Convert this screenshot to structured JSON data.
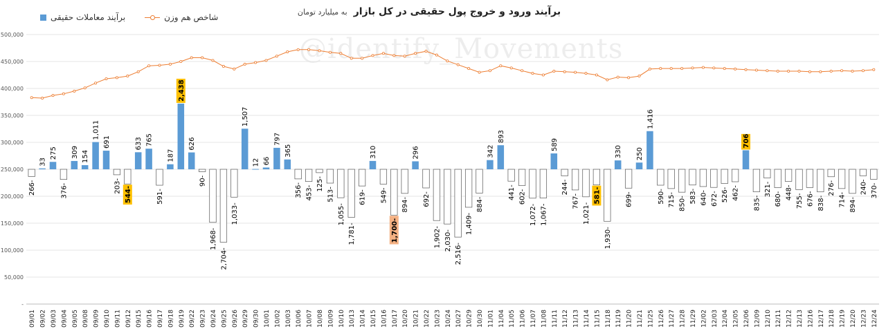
{
  "header": {
    "title": "برآیند ورود و خروج پول حقیقی در کل بازار",
    "subtitle": "به میلیارد تومان"
  },
  "legend": {
    "bars_label": "برآیند معاملات حقیقی",
    "line_label": "شاخص هم وزن"
  },
  "watermark": "@identify_Movements",
  "colors": {
    "bar_positive": "#5b9bd5",
    "bar_negative_fill": "#ffffff",
    "bar_negative_stroke": "#555555",
    "line": "#ed7d31",
    "highlight_yellow": "#ffc000",
    "highlight_orange": "#f4b183"
  },
  "chart_data": {
    "type": "bar",
    "ylabel": "",
    "xlabel": "",
    "ylim": [
      0,
      500000
    ],
    "yticks": [
      "-",
      "50,000",
      "100,000",
      "150,000",
      "200,000",
      "250,000",
      "300,000",
      "350,000",
      "400,000",
      "450,000",
      "500,000"
    ],
    "categories": [
      "09/01",
      "09/02",
      "09/03",
      "09/04",
      "09/05",
      "09/08",
      "09/09",
      "09/10",
      "09/11",
      "09/12",
      "09/15",
      "09/16",
      "09/17",
      "09/18",
      "09/19",
      "09/22",
      "09/23",
      "09/24",
      "09/25",
      "09/26",
      "09/29",
      "09/30",
      "10/01",
      "10/02",
      "10/03",
      "10/06",
      "10/07",
      "10/08",
      "10/09",
      "10/10",
      "10/13",
      "10/14",
      "10/15",
      "10/16",
      "10/17",
      "10/20",
      "10/21",
      "10/22",
      "10/23",
      "10/24",
      "10/27",
      "10/29",
      "10/30",
      "11/01",
      "11/04",
      "11/05",
      "11/06",
      "11/07",
      "11/08",
      "11/11",
      "11/12",
      "11/13",
      "11/14",
      "11/15",
      "11/18",
      "11/19",
      "11/20",
      "11/21",
      "11/25",
      "11/26",
      "11/27",
      "11/28",
      "11/29",
      "12/02",
      "12/03",
      "12/04",
      "12/05",
      "12/06",
      "12/09",
      "12/10",
      "12/11",
      "12/12",
      "12/13",
      "12/16",
      "12/17",
      "12/18",
      "12/19",
      "12/20",
      "12/23",
      "12/24"
    ],
    "series": [
      {
        "name": "برآیند معاملات حقیقی",
        "kind": "bar",
        "values": [
          -266,
          33,
          275,
          -376,
          309,
          154,
          1011,
          691,
          -203,
          -544,
          633,
          765,
          -591,
          187,
          2438,
          626,
          -90,
          -1968,
          -2704,
          -1033,
          1507,
          12,
          66,
          797,
          365,
          -356,
          -453,
          -125,
          -513,
          -1055,
          -1781,
          -619,
          310,
          -549,
          -1700,
          -894,
          296,
          -692,
          -1902,
          -2030,
          -2516,
          -1409,
          -884,
          342,
          893,
          -441,
          -602,
          -1072,
          -1067,
          589,
          -244,
          -767,
          -1021,
          -581,
          -1930,
          330,
          -699,
          250,
          1416,
          -590,
          -715,
          -850,
          -583,
          -640,
          -672,
          -526,
          -462,
          706,
          -835,
          -321,
          -680,
          -448,
          -755,
          -676,
          -838,
          -276,
          -714,
          -894,
          -240,
          -370
        ],
        "labels": [
          "266-",
          "33",
          "275",
          "376-",
          "309",
          "154",
          "1,011",
          "691",
          "203-",
          "544-",
          "633",
          "765",
          "591-",
          "187",
          "2,438",
          "626",
          "90-",
          "1,968-",
          "2,704-",
          "1,033-",
          "1,507",
          "12",
          "66",
          "797",
          "365",
          "356-",
          "453-",
          "125-",
          "513-",
          "1,055-",
          "1,781-",
          "619-",
          "310",
          "549-",
          "1,700-",
          "894-",
          "296",
          "692-",
          "1,902-",
          "2,030-",
          "2,516-",
          "1,409-",
          "884-",
          "342",
          "893",
          "441-",
          "602-",
          "1,072-",
          "1,067-",
          "589",
          "244-",
          "767-",
          "1,021-",
          "581-",
          "1,930-",
          "330",
          "699-",
          "250",
          "1,416",
          "590-",
          "715-",
          "850-",
          "583-",
          "640-",
          "672-",
          "526-",
          "462-",
          "706",
          "835-",
          "321-",
          "680-",
          "448-",
          "755-",
          "676-",
          "838-",
          "276-",
          "714-",
          "894-",
          "240-",
          "370-"
        ],
        "highlight_yellow": [
          9,
          14,
          53,
          67
        ],
        "highlight_orange": [
          34
        ]
      },
      {
        "name": "شاخص هم وزن",
        "kind": "line",
        "values": [
          383000,
          382000,
          387000,
          390000,
          395000,
          401000,
          410000,
          418000,
          420000,
          423000,
          431000,
          442000,
          443000,
          445000,
          450000,
          457000,
          457000,
          452000,
          441000,
          436000,
          445000,
          448000,
          452000,
          460000,
          468000,
          472000,
          472000,
          470000,
          467000,
          465000,
          456000,
          456000,
          461000,
          465000,
          461000,
          460000,
          465000,
          469000,
          462000,
          451000,
          444000,
          437000,
          430000,
          433000,
          442000,
          438000,
          433000,
          428000,
          425000,
          432000,
          431000,
          430000,
          428000,
          425000,
          416000,
          421000,
          420000,
          423000,
          436000,
          437000,
          437000,
          437000,
          438000,
          439000,
          438000,
          437000,
          436000,
          435000,
          434000,
          433000,
          432000,
          432000,
          432000,
          431000,
          431000,
          432000,
          433000,
          432000,
          433000,
          435000
        ]
      }
    ]
  }
}
